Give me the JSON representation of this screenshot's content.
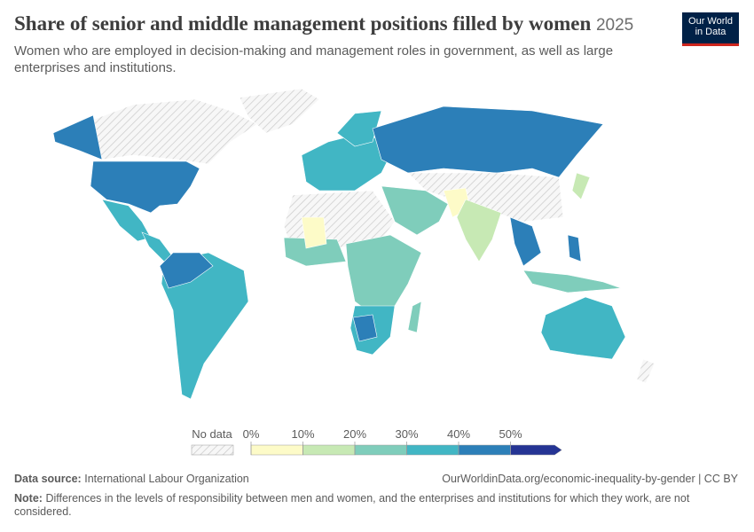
{
  "header": {
    "title": "Share of senior and middle management positions filled by women",
    "year": "2025",
    "subtitle": "Women who are employed in decision-making and management roles in government, as well as large enterprises and institutions."
  },
  "logo": {
    "lines": [
      "Our World",
      "in Data"
    ]
  },
  "legend": {
    "no_data": "No data",
    "ticks": [
      {
        "value": 0,
        "label": "0%"
      },
      {
        "value": 10,
        "label": "10%"
      },
      {
        "value": 20,
        "label": "20%"
      },
      {
        "value": 30,
        "label": "30%"
      },
      {
        "value": 40,
        "label": "40%"
      },
      {
        "value": 50,
        "label": "50%"
      }
    ],
    "colors": [
      "#fdfbc8",
      "#c7e9b4",
      "#7fcdbb",
      "#41b6c4",
      "#2c7fb8",
      "#253494"
    ]
  },
  "footer": {
    "source_label": "Data source:",
    "source": "International Labour Organization",
    "url": "OurWorldinData.org/economic-inequality-by-gender | CC BY",
    "note_label": "Note:",
    "note": "Differences in the levels of responsibility between men and women, and the enterprises and institutions for which they work, are not considered."
  }
}
